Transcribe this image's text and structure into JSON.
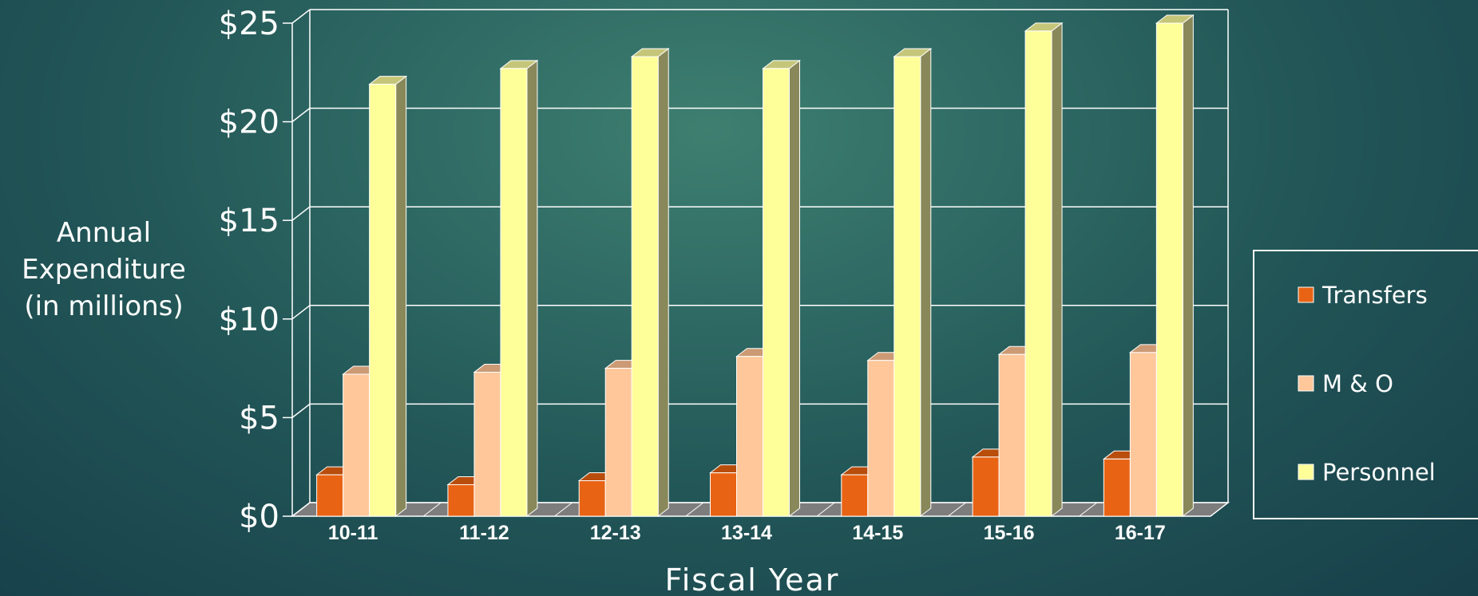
{
  "chart_data": {
    "type": "bar",
    "title": "",
    "xlabel": "Fiscal Year",
    "ylabel_lines": [
      "Annual",
      "Expenditure",
      "(in millions)"
    ],
    "categories": [
      "10-11",
      "11-12",
      "12-13",
      "13-14",
      "14-15",
      "15-16",
      "16-17"
    ],
    "y_tick_labels": [
      "$0",
      "$5",
      "$10",
      "$15",
      "$20",
      "$25"
    ],
    "ylim": [
      0,
      25
    ],
    "y_step": 5,
    "grid": true,
    "legend_position": "right",
    "series": [
      {
        "name": "Transfers",
        "values": [
          2.1,
          1.6,
          1.8,
          2.2,
          2.1,
          3.0,
          2.9
        ]
      },
      {
        "name": "M & O",
        "values": [
          7.2,
          7.3,
          7.5,
          8.1,
          7.9,
          8.2,
          8.3
        ]
      },
      {
        "name": "Personnel",
        "values": [
          21.9,
          22.7,
          23.3,
          22.7,
          23.3,
          24.6,
          25.0
        ]
      }
    ],
    "colors": {
      "Transfers": {
        "front": "#e86414",
        "top": "#b84d0c",
        "side": "#8a3a0a"
      },
      "M & O": {
        "front": "#ffc79a",
        "top": "#cc9a74",
        "side": "#a67a5a"
      },
      "Personnel": {
        "front": "#ffff99",
        "top": "#c6c67a",
        "side": "#88885a"
      }
    }
  }
}
